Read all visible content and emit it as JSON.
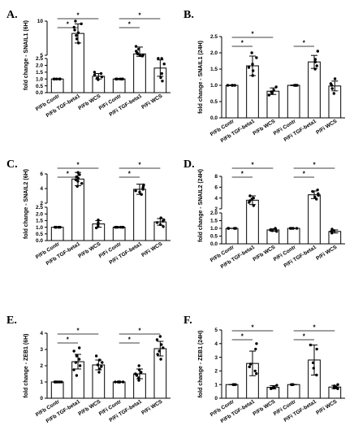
{
  "chart_data": [
    {
      "type": "bar",
      "panel_label": "A.",
      "ylabel": "fold change - SNAIL1 (6H)",
      "categories": [
        "P/Fb Contr",
        "P/Fb TGF-beta1",
        "P/Fb WCS",
        "P/Fi Contr",
        "P/Fi TGF-beta1",
        "P/Fi WCS"
      ],
      "values": [
        1.0,
        8.2,
        1.2,
        1.0,
        5.2,
        1.8
      ],
      "errors": [
        0.02,
        1.4,
        0.2,
        0.03,
        1.0,
        0.6
      ],
      "points": [
        [
          1.0,
          1.0,
          1.0,
          1.0,
          1.0,
          1.0
        ],
        [
          6.8,
          7.4,
          7.9,
          8.3,
          8.7,
          9.1,
          9.6,
          10.0
        ],
        [
          0.95,
          1.05,
          1.15,
          1.3,
          1.4,
          1.5
        ],
        [
          1.0,
          1.0,
          1.0,
          1.0,
          1.0,
          1.0
        ],
        [
          4.4,
          4.8,
          5.0,
          5.2,
          5.4,
          5.6,
          5.9,
          6.3
        ],
        [
          0.85,
          1.1,
          1.4,
          2.1,
          2.5,
          2.6
        ]
      ],
      "broken_axis": true,
      "lower_segment": {
        "ylim": [
          0.0,
          2.5
        ],
        "ticks": [
          "0.0",
          "0.5",
          "1.0",
          "1.5",
          "2.0",
          "2.5"
        ]
      },
      "upper_segment": {
        "ylim": [
          5,
          10
        ],
        "ticks": [
          "5",
          "10"
        ]
      },
      "significance": [
        {
          "from": 0,
          "to": 1,
          "label": "*"
        },
        {
          "from": 0,
          "to": 2,
          "label": "*"
        },
        {
          "from": 3,
          "to": 4,
          "label": "*"
        },
        {
          "from": 3,
          "to": 5,
          "label": "*"
        }
      ],
      "grid": false,
      "legend": "none"
    },
    {
      "type": "bar",
      "panel_label": "B.",
      "ylabel": "fold change - SNAIL1 (24H)",
      "categories": [
        "P/Fb Contr",
        "P/Fb TGF-beta1",
        "P/Fb WCS",
        "P/Fi Contr",
        "P/Fi TGF-beta1",
        "P/Fi WCS"
      ],
      "values": [
        1.0,
        1.6,
        0.82,
        1.0,
        1.72,
        0.98
      ],
      "errors": [
        0.01,
        0.3,
        0.1,
        0.01,
        0.2,
        0.15
      ],
      "points": [
        [
          1.0,
          1.0,
          1.0,
          1.0
        ],
        [
          1.3,
          1.45,
          1.55,
          1.65,
          1.85,
          2.0
        ],
        [
          0.7,
          0.75,
          0.8,
          0.85,
          0.95
        ],
        [
          1.0,
          1.0,
          1.0,
          1.0
        ],
        [
          1.5,
          1.6,
          1.72,
          1.8,
          2.05
        ],
        [
          0.75,
          0.9,
          1.0,
          1.05,
          1.2
        ]
      ],
      "broken_axis": false,
      "ylim": [
        0.0,
        2.5
      ],
      "ticks": [
        "0.0",
        "0.5",
        "1.0",
        "1.5",
        "2.0",
        "2.5"
      ],
      "significance": [
        {
          "from": 0,
          "to": 1,
          "label": "*"
        },
        {
          "from": 0,
          "to": 2,
          "label": "*"
        },
        {
          "from": 3,
          "to": 4,
          "label": "*"
        }
      ],
      "grid": false,
      "legend": "none"
    },
    {
      "type": "bar",
      "panel_label": "C.",
      "ylabel": "fold change - SNAIL2 (6H)",
      "categories": [
        "P/Fb Contr",
        "P/Fb TGF-beta1",
        "P/Fb WCS",
        "P/Fi Contr",
        "P/Fi TGF-beta1",
        "P/Fi WCS"
      ],
      "values": [
        1.0,
        5.3,
        1.25,
        1.0,
        3.9,
        1.4
      ],
      "errors": [
        0.02,
        0.9,
        0.25,
        0.03,
        0.7,
        0.25
      ],
      "points": [
        [
          1.0,
          1.0,
          1.0,
          1.0,
          1.0,
          1.0
        ],
        [
          4.3,
          4.7,
          5.0,
          5.2,
          5.4,
          5.6,
          5.9,
          6.2
        ],
        [
          0.95,
          1.05,
          1.2,
          1.35,
          1.55
        ],
        [
          1.0,
          1.0,
          1.0,
          1.0,
          1.0,
          1.0
        ],
        [
          3.2,
          3.5,
          3.7,
          3.9,
          4.1,
          4.3,
          4.5
        ],
        [
          1.05,
          1.2,
          1.35,
          1.45,
          1.55,
          1.7
        ]
      ],
      "broken_axis": true,
      "lower_segment": {
        "ylim": [
          0.0,
          2.5
        ],
        "ticks": [
          "0.0",
          "0.5",
          "1.0",
          "1.5",
          "2.0",
          "2.5"
        ]
      },
      "upper_segment": {
        "ylim": [
          2,
          6
        ],
        "ticks": [
          "2",
          "4",
          "6"
        ]
      },
      "significance": [
        {
          "from": 0,
          "to": 1,
          "label": "*"
        },
        {
          "from": 0,
          "to": 2,
          "label": "*"
        },
        {
          "from": 3,
          "to": 4,
          "label": "*"
        },
        {
          "from": 3,
          "to": 5,
          "label": "*"
        }
      ],
      "grid": false,
      "legend": "none"
    },
    {
      "type": "bar",
      "panel_label": "D.",
      "ylabel": "fold change - SNAIL2 (24H)",
      "categories": [
        "P/Fb Contr",
        "P/Fb TGF-beta1",
        "P/Fb WCS",
        "P/Fi Contr",
        "P/Fi TGF-beta1",
        "P/Fi WCS"
      ],
      "values": [
        1.0,
        3.6,
        0.9,
        1.0,
        4.6,
        0.8
      ],
      "errors": [
        0.01,
        0.8,
        0.08,
        0.01,
        0.7,
        0.1
      ],
      "points": [
        [
          1.0,
          1.0,
          1.0,
          1.0
        ],
        [
          2.6,
          3.2,
          3.5,
          3.8,
          4.0,
          4.4
        ],
        [
          0.8,
          0.85,
          0.9,
          0.95,
          1.0
        ],
        [
          1.0,
          1.0,
          1.0,
          1.0
        ],
        [
          3.8,
          4.2,
          4.5,
          4.8,
          5.2,
          5.5
        ],
        [
          0.7,
          0.75,
          0.8,
          0.85,
          0.95
        ]
      ],
      "broken_axis": true,
      "lower_segment": {
        "ylim": [
          0.0,
          2.0
        ],
        "ticks": [
          "0.0",
          "0.5",
          "1.0",
          "1.5",
          "2.0"
        ]
      },
      "upper_segment": {
        "ylim": [
          2,
          8
        ],
        "ticks": [
          "2",
          "4",
          "6",
          "8"
        ]
      },
      "significance": [
        {
          "from": 0,
          "to": 1,
          "label": "*"
        },
        {
          "from": 0,
          "to": 2,
          "label": "*"
        },
        {
          "from": 3,
          "to": 4,
          "label": "*"
        },
        {
          "from": 3,
          "to": 5,
          "label": "*"
        }
      ],
      "grid": false,
      "legend": "none"
    },
    {
      "type": "bar",
      "panel_label": "E.",
      "ylabel": "fold change - ZEB1 (6H)",
      "categories": [
        "P/Fb Contr",
        "P/Fb TGF-beta1",
        "P/Fb WCS",
        "P/Fi Contr",
        "P/Fi TGF-beta1",
        "P/Fi WCS"
      ],
      "values": [
        1.0,
        2.25,
        2.05,
        1.0,
        1.5,
        3.05
      ],
      "errors": [
        0.02,
        0.45,
        0.3,
        0.02,
        0.3,
        0.45
      ],
      "points": [
        [
          1.0,
          1.0,
          1.0,
          1.0,
          1.0,
          1.0
        ],
        [
          1.4,
          1.75,
          2.0,
          2.2,
          2.4,
          2.6,
          2.9,
          3.1
        ],
        [
          1.6,
          1.8,
          1.95,
          2.05,
          2.2,
          2.35,
          2.6
        ],
        [
          1.0,
          1.0,
          1.0,
          1.0,
          1.0,
          1.0
        ],
        [
          1.1,
          1.25,
          1.4,
          1.5,
          1.6,
          1.75,
          2.0
        ],
        [
          2.4,
          2.7,
          2.9,
          3.1,
          3.3,
          3.6,
          3.8
        ]
      ],
      "broken_axis": false,
      "ylim": [
        0,
        4
      ],
      "ticks": [
        "0",
        "1",
        "2",
        "3",
        "4"
      ],
      "significance": [
        {
          "from": 0,
          "to": 1,
          "label": "*"
        },
        {
          "from": 0,
          "to": 2,
          "label": "*"
        },
        {
          "from": 3,
          "to": 4,
          "label": "*"
        },
        {
          "from": 3,
          "to": 5,
          "label": "*"
        }
      ],
      "grid": false,
      "legend": "none"
    },
    {
      "type": "bar",
      "panel_label": "F.",
      "ylabel": "fold change - ZEB1 (24H)",
      "categories": [
        "P/Fb Contr",
        "P/Fb TGF-beta1",
        "P/Fb WCS",
        "P/Fi Contr",
        "P/Fi TGF-beta1",
        "P/Fi WCS"
      ],
      "values": [
        1.0,
        2.55,
        0.8,
        1.0,
        2.8,
        0.82
      ],
      "errors": [
        0.01,
        0.9,
        0.12,
        0.01,
        1.1,
        0.12
      ],
      "points": [
        [
          1.0,
          1.0,
          1.0,
          1.0
        ],
        [
          1.8,
          2.0,
          2.3,
          2.5,
          3.6,
          4.0
        ],
        [
          0.7,
          0.75,
          0.8,
          0.85,
          0.95
        ],
        [
          1.0,
          1.0,
          1.0,
          1.0
        ],
        [
          1.7,
          2.2,
          2.6,
          3.6,
          3.9
        ],
        [
          0.7,
          0.75,
          0.8,
          0.9,
          1.0
        ]
      ],
      "broken_axis": false,
      "ylim": [
        0,
        5
      ],
      "ticks": [
        "0",
        "1",
        "2",
        "3",
        "4",
        "5"
      ],
      "significance": [
        {
          "from": 0,
          "to": 1,
          "label": "*"
        },
        {
          "from": 0,
          "to": 2,
          "label": "*"
        },
        {
          "from": 3,
          "to": 4,
          "label": "*"
        },
        {
          "from": 3,
          "to": 5,
          "label": "*"
        }
      ],
      "grid": false,
      "legend": "none"
    }
  ]
}
